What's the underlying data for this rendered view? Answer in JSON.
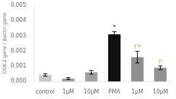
{
  "chart_data": {
    "type": "bar",
    "categories": [
      "control",
      "1μM",
      "10μM",
      "PMA",
      "1μM",
      "10μM"
    ],
    "values": [
      0.00043,
      0.0002,
      0.0006,
      0.0031,
      0.0016,
      0.0009
    ],
    "errors": [
      8e-05,
      6e-05,
      0.00012,
      0.00018,
      0.00038,
      0.00012
    ],
    "colors": [
      "#c8c8c8",
      "#a0a0a0",
      "#a0a0a0",
      "#111111",
      "#909090",
      "#909090"
    ],
    "annotations": [
      null,
      null,
      null,
      {
        "text": "*",
        "color": "black"
      },
      {
        "text": "!’*",
        "color": "#b8860b"
      },
      {
        "text": "!’",
        "color": "#b8860b"
      }
    ],
    "ylabel": "COX-2 gene / βactin gene",
    "ylim": [
      0,
      0.005
    ],
    "yticks": [
      {
        "value": 0,
        "label": "0.000"
      },
      0.001,
      0.002,
      0.003,
      0.004,
      0.005
    ],
    "grid": false
  }
}
